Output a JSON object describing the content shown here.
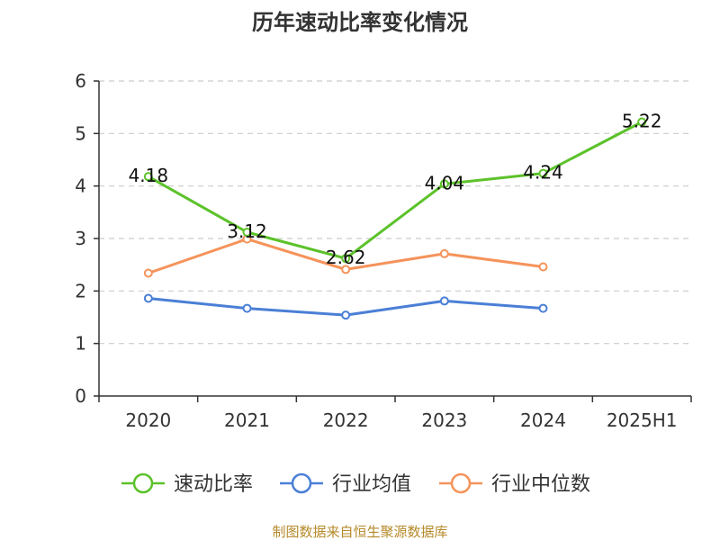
{
  "chart_data": {
    "type": "line",
    "title": "历年速动比率变化情况",
    "categories": [
      "2020",
      "2021",
      "2022",
      "2023",
      "2024",
      "2025H1"
    ],
    "ylim": [
      0,
      6
    ],
    "yticks": [
      "0",
      "1",
      "2",
      "3",
      "4",
      "5",
      "6"
    ],
    "grid": "horizontal dashed",
    "legend_position": "bottom",
    "series": [
      {
        "name": "速动比率",
        "color": "#5cc22a",
        "values": [
          4.18,
          3.12,
          2.62,
          4.04,
          4.24,
          5.22
        ],
        "labels": [
          "4.18",
          "3.12",
          "2.62",
          "4.04",
          "4.24",
          "5.22"
        ]
      },
      {
        "name": "行业均值",
        "color": "#4a7fd6",
        "values": [
          1.86,
          1.67,
          1.54,
          1.81,
          1.67,
          null
        ]
      },
      {
        "name": "行业中位数",
        "color": "#f5935a",
        "values": [
          2.34,
          2.99,
          2.41,
          2.71,
          2.46,
          null
        ]
      }
    ]
  },
  "footer": {
    "source": "制图数据来自恒生聚源数据库"
  }
}
